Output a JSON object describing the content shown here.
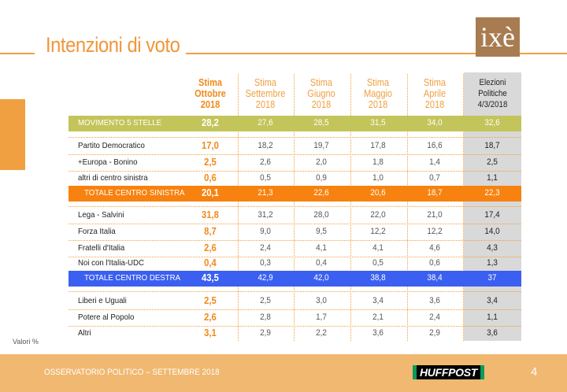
{
  "title": "Intenzioni di voto",
  "logo_text": "ixè",
  "footer": {
    "text": "OSSERVATORIO POLITICO – SETTEMBRE 2018",
    "brand": "HUFFPOST",
    "page": "4"
  },
  "note": "Valori %",
  "colors": {
    "accent": "#f0a040",
    "green_row": "#c3c45a",
    "orange_row": "#f7820f",
    "blue_row": "#3b5ff0",
    "grey_col": "#d9d9d9"
  },
  "table": {
    "headers": [
      {
        "line1": "Stima",
        "line2": "Ottobre",
        "line3": "2018"
      },
      {
        "line1": "Stima",
        "line2": "Settembre",
        "line3": "2018"
      },
      {
        "line1": "Stima",
        "line2": "Giugno",
        "line3": "2018"
      },
      {
        "line1": "Stima",
        "line2": "Maggio",
        "line3": "2018"
      },
      {
        "line1": "Stima",
        "line2": "Aprile",
        "line3": "2018"
      },
      {
        "line1": "Elezioni",
        "line2": "Politiche",
        "line3": "4/3/2018"
      }
    ],
    "rows": [
      {
        "label": "MOVIMENTO 5 STELLE",
        "values": [
          "28,2",
          "27,6",
          "28,5",
          "31,5",
          "34,0",
          "32,6"
        ]
      },
      {
        "label": "Partito Democratico",
        "values": [
          "17,0",
          "18,2",
          "19,7",
          "17,8",
          "16,6",
          "18,7"
        ]
      },
      {
        "label": "+Europa - Bonino",
        "values": [
          "2,5",
          "2,6",
          "2,0",
          "1,8",
          "1,4",
          "2,5"
        ]
      },
      {
        "label": "altri di centro sinistra",
        "values": [
          "0,6",
          "0,5",
          "0,9",
          "1,0",
          "0,7",
          "1,1"
        ]
      },
      {
        "label": "TOTALE CENTRO SINISTRA",
        "values": [
          "20,1",
          "21,3",
          "22,6",
          "20,6",
          "18,7",
          "22,3"
        ]
      },
      {
        "label": "Lega - Salvini",
        "values": [
          "31,8",
          "31,2",
          "28,0",
          "22,0",
          "21,0",
          "17,4"
        ]
      },
      {
        "label": "Forza Italia",
        "values": [
          "8,7",
          "9,0",
          "9,5",
          "12,2",
          "12,2",
          "14,0"
        ]
      },
      {
        "label": "Fratelli d'Italia",
        "values": [
          "2,6",
          "2,4",
          "4,1",
          "4,1",
          "4,6",
          "4,3"
        ]
      },
      {
        "label": "Noi con l'Italia-UDC",
        "values": [
          "0,4",
          "0,3",
          "0,4",
          "0,5",
          "0,6",
          "1,3"
        ]
      },
      {
        "label": "TOTALE CENTRO DESTRA",
        "values": [
          "43,5",
          "42,9",
          "42,0",
          "38,8",
          "38,4",
          "37"
        ]
      },
      {
        "label": "Liberi e Uguali",
        "values": [
          "2,5",
          "2,5",
          "3,0",
          "3,4",
          "3,6",
          "3,4"
        ]
      },
      {
        "label": "Potere al Popolo",
        "values": [
          "2,6",
          "2,8",
          "1,7",
          "2,1",
          "2,4",
          "1,1"
        ]
      },
      {
        "label": "Altri",
        "values": [
          "3,1",
          "2,9",
          "2,2",
          "3,6",
          "2,9",
          "3,6"
        ]
      }
    ]
  }
}
